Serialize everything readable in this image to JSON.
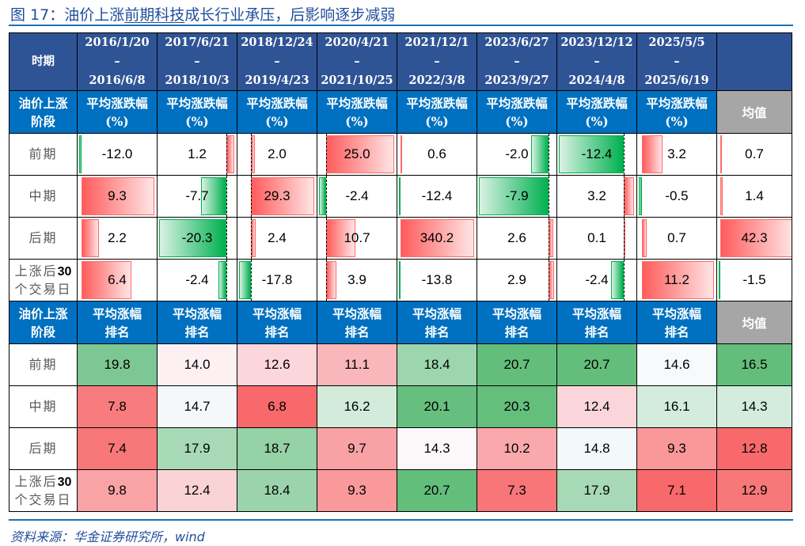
{
  "title": {
    "prefix": "图 17：油价上涨",
    "underlined": "前期科技",
    "suffix": "成长行业承压，后影响逐步减弱"
  },
  "source": "资料来源：华金证券研究所，wind",
  "colors": {
    "header_dark": "#2f5496",
    "header_blue": "#0070c0",
    "header_gray": "#a6a6a6",
    "rule_blue": "#1f6fb8",
    "bar_positive": "#ff5b5b",
    "bar_negative": "#00b050"
  },
  "table": {
    "period_header": "时期",
    "periods": [
      {
        "start": "2016/1/20",
        "sep": "–",
        "end": "2016/6/8"
      },
      {
        "start": "2017/6/21",
        "sep": "–",
        "end": "2018/10/3"
      },
      {
        "start": "2018/12/24",
        "sep": "–",
        "end": "2019/4/23"
      },
      {
        "start": "2020/4/21",
        "sep": "–",
        "end": "2021/10/25"
      },
      {
        "start": "2021/12/1",
        "sep": "–",
        "end": "2022/3/8"
      },
      {
        "start": "2023/6/27",
        "sep": "–",
        "end": "2023/9/27"
      },
      {
        "start": "2023/12/12",
        "sep": "–",
        "end": "2024/4/8"
      },
      {
        "start": "2025/5/5",
        "sep": "–",
        "end": "2025/6/19"
      }
    ],
    "section1": {
      "stage_header_line1": "油价上涨",
      "stage_header_line2": "阶段",
      "col_header_line1": "平均涨跌幅",
      "col_header_line2": "(%)",
      "avg_header": "均值",
      "rows": [
        {
          "label": "前期",
          "values": [
            "-12.0",
            "1.2",
            "2.0",
            "25.0",
            "0.6",
            "-2.0",
            "-12.4",
            "3.2"
          ],
          "avg": "0.7"
        },
        {
          "label": "中期",
          "values": [
            "9.3",
            "-7.7",
            "29.3",
            "-2.4",
            "-12.4",
            "-7.9",
            "3.2",
            "-0.5"
          ],
          "avg": "1.4"
        },
        {
          "label": "后期",
          "values": [
            "2.2",
            "-20.3",
            "2.4",
            "10.7",
            "340.2",
            "2.6",
            "0.1",
            "0.7"
          ],
          "avg": "42.3"
        },
        {
          "label_line1": "上涨后",
          "label_num": "30",
          "label_line2": "个交易日",
          "values": [
            "6.4",
            "-2.4",
            "-17.8",
            "3.9",
            "-13.8",
            "2.9",
            "-2.4",
            "11.2"
          ],
          "avg": "-1.5"
        }
      ]
    },
    "section2": {
      "stage_header_line1": "油价上涨",
      "stage_header_line2": "阶段",
      "col_header_line1": "平均涨幅",
      "col_header_line2": "排名",
      "avg_header": "均值",
      "rows": [
        {
          "label": "前期",
          "values": [
            "19.8",
            "14.0",
            "12.6",
            "11.1",
            "18.4",
            "20.7",
            "20.7",
            "14.6"
          ],
          "avg": "16.5",
          "colors": [
            "#7cc793",
            "#fdf0f3",
            "#fbd6da",
            "#f9b7bb",
            "#9dd5ae",
            "#63be7b",
            "#63be7b",
            "#f7f9fb",
            "#63be7b"
          ]
        },
        {
          "label": "中期",
          "values": [
            "7.8",
            "14.7",
            "6.8",
            "16.2",
            "20.1",
            "20.3",
            "12.4",
            "16.1"
          ],
          "avg": "14.3",
          "colors": [
            "#f87c7e",
            "#f5f8fa",
            "#f8696b",
            "#d2ebdb",
            "#66bf7e",
            "#64be7c",
            "#fad5d9",
            "#d4ecdd",
            "#d3ecdc"
          ]
        },
        {
          "label": "后期",
          "values": [
            "7.4",
            "17.9",
            "18.7",
            "9.7",
            "14.3",
            "10.2",
            "14.8",
            "9.3"
          ],
          "avg": "12.8",
          "colors": [
            "#f87779",
            "#a8d9b6",
            "#94d1a5",
            "#f9a2a6",
            "#fbf8fa",
            "#f9a8ab",
            "#f3f8fa",
            "#f99799",
            "#f8696b"
          ]
        },
        {
          "label_line1": "上涨后",
          "label_num": "30",
          "label_line2": "个交易日",
          "values": [
            "9.8",
            "12.4",
            "18.4",
            "9.3",
            "20.7",
            "7.3",
            "17.9",
            "7.1"
          ],
          "avg": "12.9",
          "colors": [
            "#f9a3a6",
            "#fad3d7",
            "#9bd4ac",
            "#f9999c",
            "#63be7b",
            "#f87678",
            "#a8d9b6",
            "#f8696b",
            "#f8787a"
          ]
        }
      ]
    }
  }
}
